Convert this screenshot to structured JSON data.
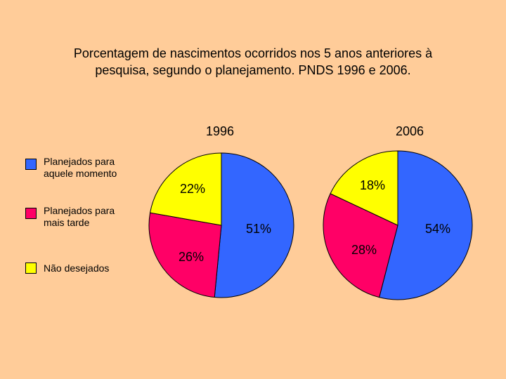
{
  "title_line1": "Porcentagem de nascimentos ocorridos nos 5 anos anteriores à",
  "title_line2": "pesquisa, segundo o planejamento. PNDS 1996 e 2006.",
  "legend": [
    {
      "label_line1": "Planejados para",
      "label_line2": "aquele momento",
      "color": "#3366ff"
    },
    {
      "label_line1": "Planejados para",
      "label_line2": "mais tarde",
      "color": "#ff0066"
    },
    {
      "label_line1": "Não desejados",
      "label_line2": "",
      "color": "#ffff00"
    }
  ],
  "chart_data": [
    {
      "type": "pie",
      "title": "1996",
      "categories": [
        "Planejados para aquele momento",
        "Planejados para mais tarde",
        "Não desejados"
      ],
      "values": [
        51,
        26,
        22
      ],
      "labels": [
        "51%",
        "26%",
        "22%"
      ],
      "colors": [
        "#3366ff",
        "#ff0066",
        "#ffff00"
      ]
    },
    {
      "type": "pie",
      "title": "2006",
      "categories": [
        "Planejados para aquele momento",
        "Planejados para mais tarde",
        "Não desejados"
      ],
      "values": [
        54,
        28,
        18
      ],
      "labels": [
        "54%",
        "28%",
        "18%"
      ],
      "colors": [
        "#3366ff",
        "#ff0066",
        "#ffff00"
      ]
    }
  ]
}
